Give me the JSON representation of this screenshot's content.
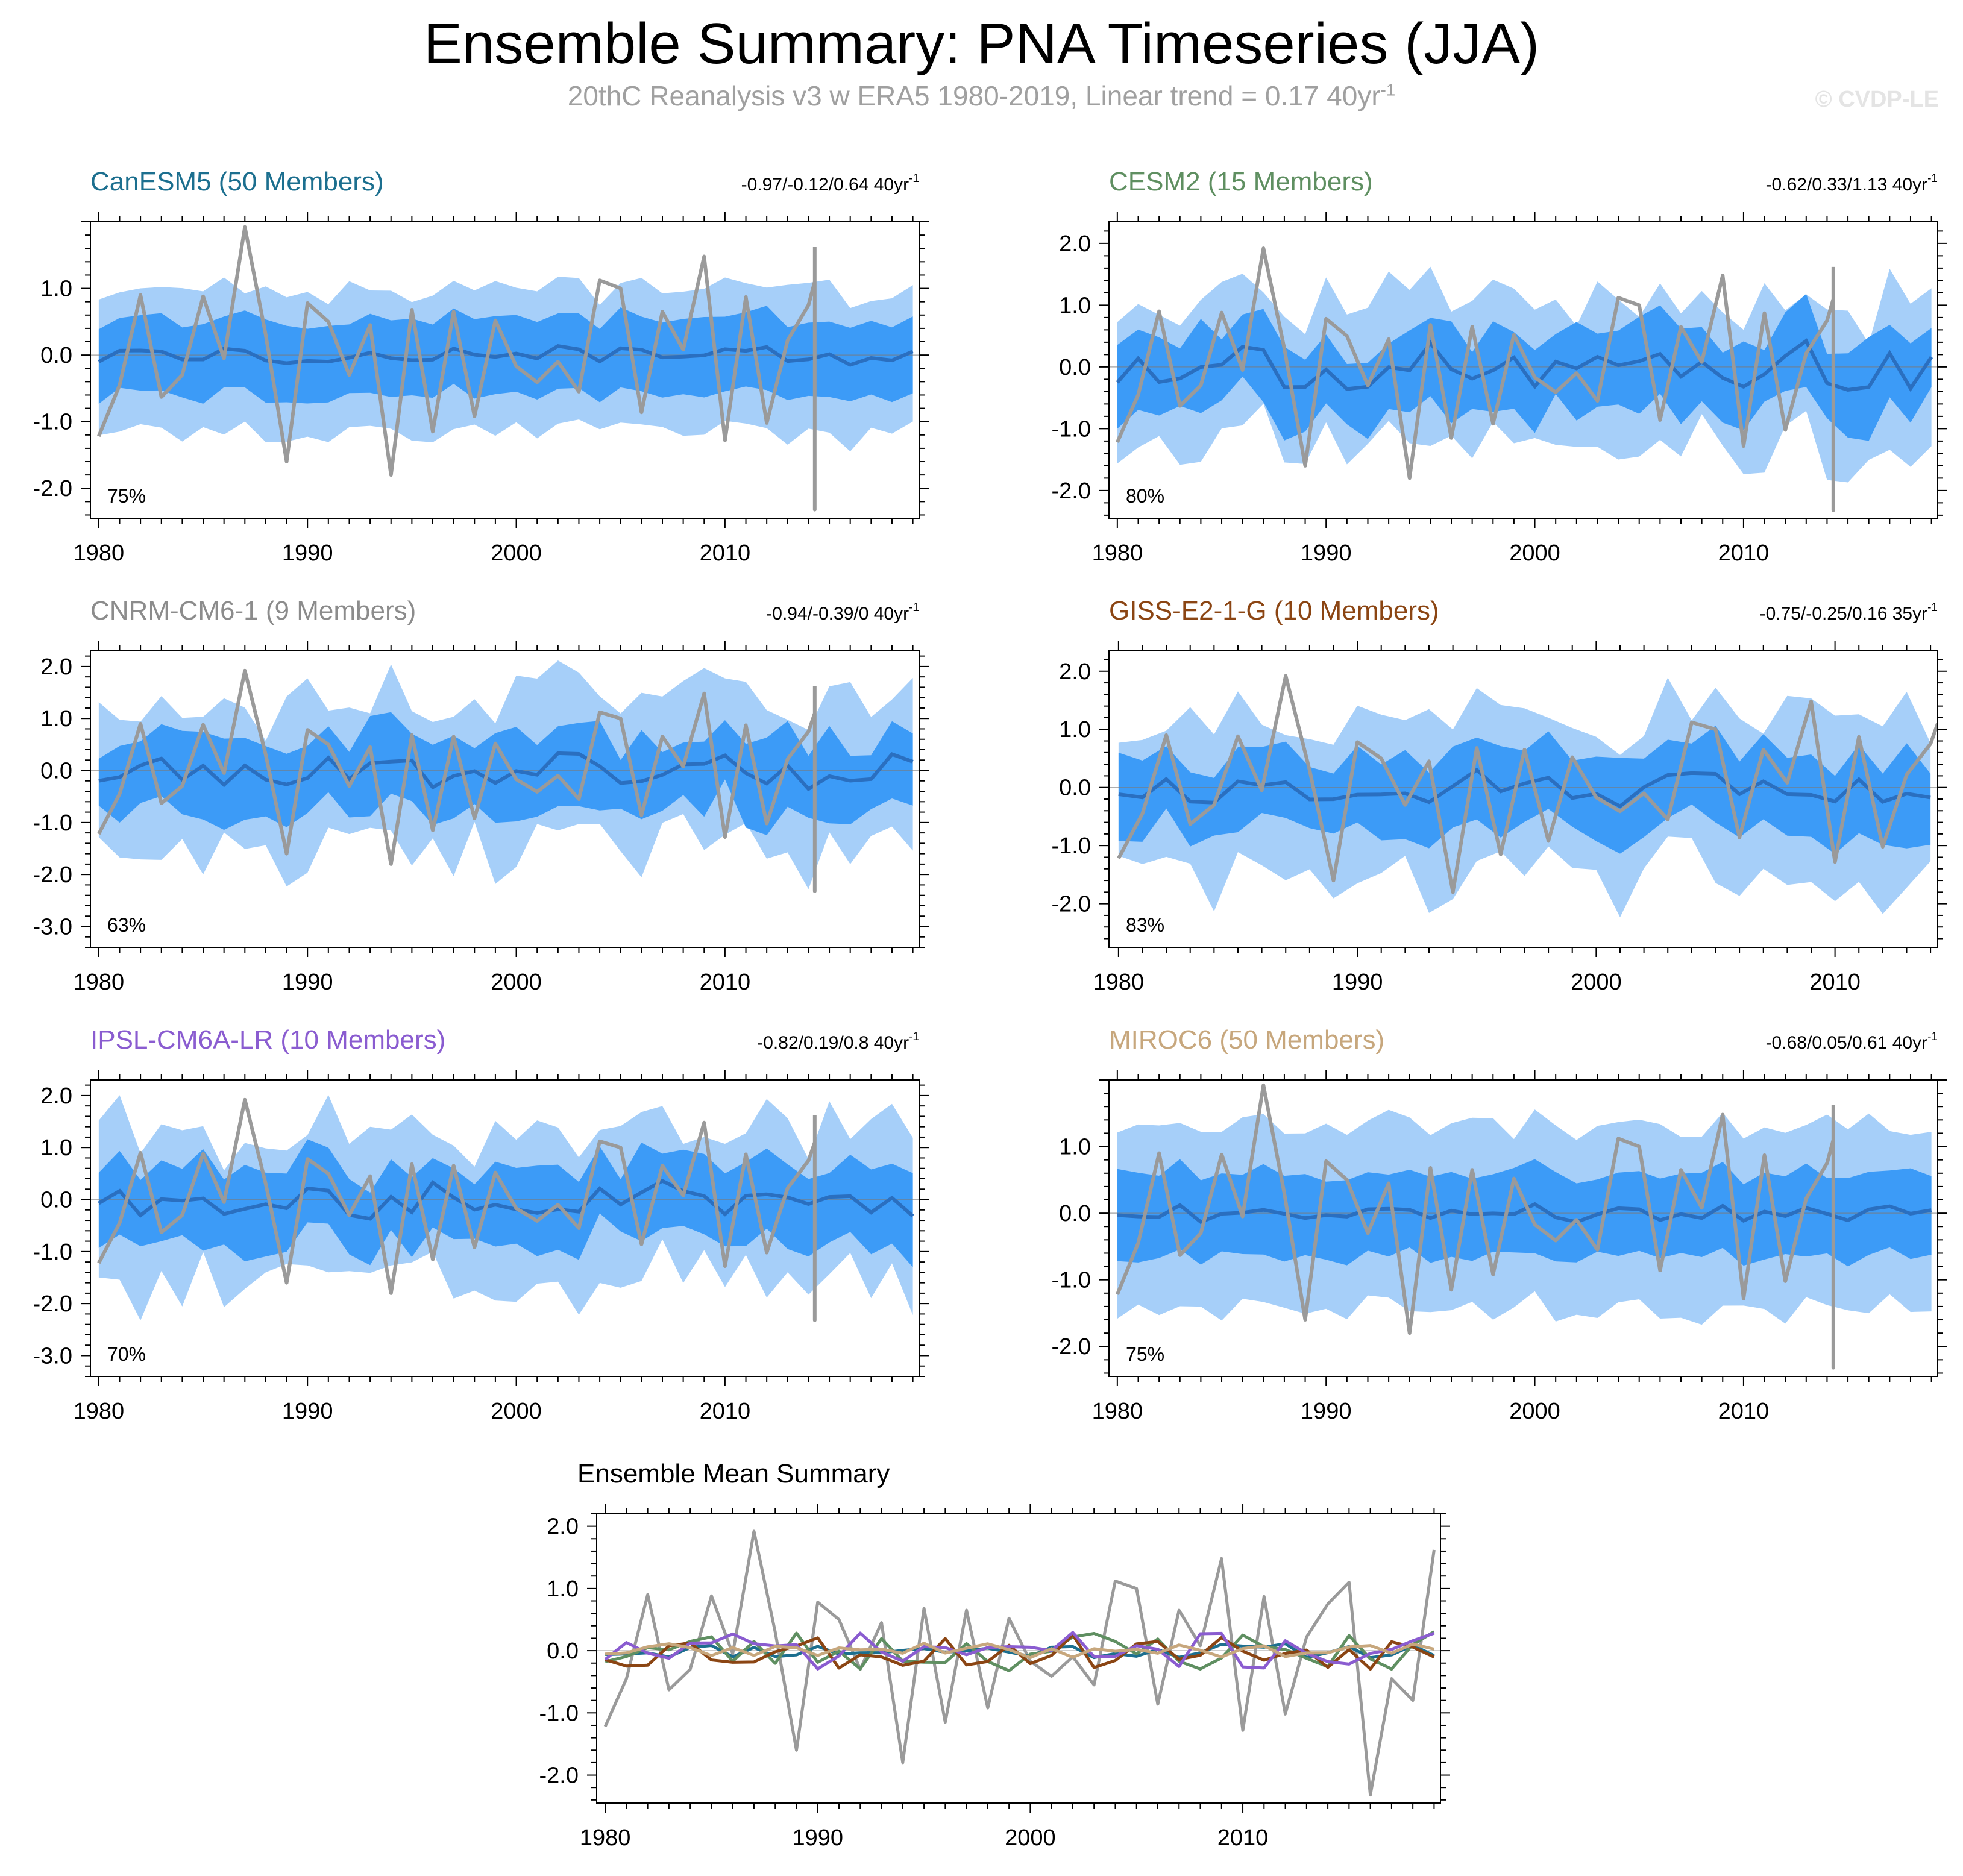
{
  "header": {
    "title": "Ensemble Summary: PNA Timeseries (JJA)",
    "subtitle_text": "20thC Reanalysis v3 w ERA5 1980-2019, Linear trend = 0.17 40yr",
    "subtitle_sup": "-1",
    "credit": "© CVDP-LE"
  },
  "colors": {
    "band_outer": "#a6cff9",
    "band_inner": "#3c9bf7",
    "ens_mean": "#2a6fc0",
    "observed": "#9a9a9a",
    "zero_line": "#7a7a7a"
  },
  "chart_data": [
    {
      "id": "canesm5",
      "type": "area",
      "title": "CanESM5 (50 Members)",
      "title_color": "#1c6f8f",
      "trend_text": "-0.97/-0.12/0.64 40yr",
      "trend_sup": "-1",
      "percent": "75%",
      "x_start": 1980,
      "x_end": 2019,
      "ylim": [
        -2.45,
        2.0
      ],
      "yticks": [
        1.0,
        0.0,
        -1.0,
        -2.0
      ],
      "ytick_labels": [
        "1.0",
        "0.0",
        "-1.0",
        "-2.0"
      ],
      "xticks": [
        1980,
        1990,
        2000,
        2010
      ],
      "xtick_labels": [
        "1980",
        "1990",
        "2000",
        "2010"
      ],
      "band_amp": 1.0,
      "inner_amp": 0.55,
      "noise": 0.15,
      "mean_amp": 0.13,
      "seed": 11
    },
    {
      "id": "cesm2",
      "type": "area",
      "title": "CESM2 (15 Members)",
      "title_color": "#5f8f61",
      "trend_text": "-0.62/0.33/1.13 40yr",
      "trend_sup": "-1",
      "percent": "80%",
      "x_start": 1980,
      "x_end": 2019,
      "ylim": [
        -2.45,
        2.35
      ],
      "yticks": [
        2.0,
        1.0,
        0.0,
        -1.0,
        -2.0
      ],
      "ytick_labels": [
        "2.0",
        "1.0",
        "0.0",
        "-1.0",
        "-2.0"
      ],
      "xticks": [
        1980,
        1990,
        2000,
        2010
      ],
      "xtick_labels": [
        "1980",
        "1990",
        "2000",
        "2010"
      ],
      "band_amp": 1.1,
      "inner_amp": 0.6,
      "noise": 0.45,
      "mean_amp": 0.35,
      "seed": 23
    },
    {
      "id": "cnrm",
      "type": "area",
      "title": "CNRM-CM6-1 (9 Members)",
      "title_color": "#8c8c8c",
      "trend_text": "-0.94/-0.39/0 40yr",
      "trend_sup": "-1",
      "percent": "63%",
      "x_start": 1980,
      "x_end": 2019,
      "ylim": [
        -3.4,
        2.3
      ],
      "yticks": [
        2.0,
        1.0,
        0.0,
        -1.0,
        -2.0,
        -3.0
      ],
      "ytick_labels": [
        "2.0",
        "1.0",
        "0.0",
        "-1.0",
        "-2.0",
        "-3.0"
      ],
      "xticks": [
        1980,
        1990,
        2000,
        2010
      ],
      "xtick_labels": [
        "1980",
        "1990",
        "2000",
        "2010"
      ],
      "band_amp": 1.35,
      "inner_amp": 0.7,
      "noise": 0.6,
      "mean_amp": 0.3,
      "seed": 37
    },
    {
      "id": "giss",
      "type": "area",
      "title": "GISS-E2-1-G (10 Members)",
      "title_color": "#8b4513",
      "trend_text": "-0.75/-0.25/0.16 35yr",
      "trend_sup": "-1",
      "percent": "83%",
      "x_start": 1980,
      "x_end": 2014,
      "ylim": [
        -2.75,
        2.35
      ],
      "yticks": [
        2.0,
        1.0,
        0.0,
        -1.0,
        -2.0
      ],
      "ytick_labels": [
        "2.0",
        "1.0",
        "0.0",
        "-1.0",
        "-2.0"
      ],
      "xticks": [
        1980,
        1990,
        2000,
        2010
      ],
      "xtick_labels": [
        "1980",
        "1990",
        "2000",
        "2010"
      ],
      "band_amp": 1.3,
      "inner_amp": 0.65,
      "noise": 0.5,
      "mean_amp": 0.3,
      "seed": 53
    },
    {
      "id": "ipsl",
      "type": "area",
      "title": "IPSL-CM6A-LR (10 Members)",
      "title_color": "#8a5cd0",
      "trend_text": "-0.82/0.19/0.8 40yr",
      "trend_sup": "-1",
      "percent": "70%",
      "x_start": 1980,
      "x_end": 2019,
      "ylim": [
        -3.4,
        2.3
      ],
      "yticks": [
        2.0,
        1.0,
        0.0,
        -1.0,
        -2.0,
        -3.0
      ],
      "ytick_labels": [
        "2.0",
        "1.0",
        "0.0",
        "-1.0",
        "-2.0",
        "-3.0"
      ],
      "xticks": [
        1980,
        1990,
        2000,
        2010
      ],
      "xtick_labels": [
        "1980",
        "1990",
        "2000",
        "2010"
      ],
      "band_amp": 1.35,
      "inner_amp": 0.7,
      "noise": 0.55,
      "mean_amp": 0.3,
      "seed": 71
    },
    {
      "id": "miroc6",
      "type": "area",
      "title": "MIROC6 (50 Members)",
      "title_color": "#c7a77d",
      "trend_text": "-0.68/0.05/0.61 40yr",
      "trend_sup": "-1",
      "percent": "75%",
      "x_start": 1980,
      "x_end": 2019,
      "ylim": [
        -2.45,
        2.0
      ],
      "yticks": [
        1.0,
        0.0,
        -1.0,
        -2.0
      ],
      "ytick_labels": [
        "1.0",
        "0.0",
        "-1.0",
        "-2.0"
      ],
      "xticks": [
        1980,
        1990,
        2000,
        2010
      ],
      "xtick_labels": [
        "1980",
        "1990",
        "2000",
        "2010"
      ],
      "band_amp": 1.3,
      "inner_amp": 0.6,
      "noise": 0.2,
      "mean_amp": 0.12,
      "seed": 89
    },
    {
      "id": "ensemble-mean",
      "type": "line",
      "title": "Ensemble Mean Summary",
      "title_color": "#000000",
      "x_start": 1980,
      "x_end": 2019,
      "ylim": [
        -2.45,
        2.2
      ],
      "yticks": [
        2.0,
        1.0,
        0.0,
        -1.0,
        -2.0
      ],
      "ytick_labels": [
        "2.0",
        "1.0",
        "0.0",
        "-1.0",
        "-2.0"
      ],
      "xticks": [
        1980,
        1990,
        2000,
        2010
      ],
      "xtick_labels": [
        "1980",
        "1990",
        "2000",
        "2010"
      ],
      "series": [
        {
          "name": "20thC Reanalysis v3 w ERA5",
          "color": "#9a9a9a",
          "ref": "observed"
        },
        {
          "name": "CanESM5",
          "color": "#1c6f8f",
          "amp": 0.12,
          "seed": 11
        },
        {
          "name": "CESM2",
          "color": "#5f8f61",
          "amp": 0.35,
          "seed": 23
        },
        {
          "name": "GISS-E2-1-G",
          "color": "#8b4513",
          "amp": 0.3,
          "seed": 53
        },
        {
          "name": "IPSL-CM6A-LR",
          "color": "#8a5cd0",
          "amp": 0.3,
          "seed": 71
        },
        {
          "name": "MIROC6",
          "color": "#c7a77d",
          "amp": 0.12,
          "seed": 89
        }
      ]
    }
  ],
  "observed": {
    "name": "20thC Reanalysis v3 w ERA5",
    "x": [
      1980,
      1981,
      1982,
      1983,
      1984,
      1985,
      1986,
      1987,
      1988,
      1989,
      1990,
      1991,
      1992,
      1993,
      1994,
      1995,
      1996,
      1997,
      1998,
      1999,
      2000,
      2001,
      2002,
      2003,
      2004,
      2005,
      2006,
      2007,
      2008,
      2009,
      2010,
      2011,
      2012,
      2013,
      2014,
      2015,
      2016,
      2017,
      2018,
      2019
    ],
    "values": [
      -1.22,
      -0.45,
      0.9,
      -0.63,
      -0.3,
      0.88,
      -0.05,
      1.92,
      0.3,
      -1.6,
      0.78,
      0.5,
      -0.3,
      0.45,
      -1.8,
      0.68,
      -1.15,
      0.65,
      -0.92,
      0.52,
      -0.17,
      -0.41,
      -0.1,
      -0.55,
      1.12,
      1.0,
      -0.86,
      0.65,
      0.08,
      1.48,
      -1.28,
      0.87,
      -1.02,
      0.22,
      0.75,
      1.1,
      -2.32,
      -0.45,
      -0.8,
      1.62
    ]
  }
}
